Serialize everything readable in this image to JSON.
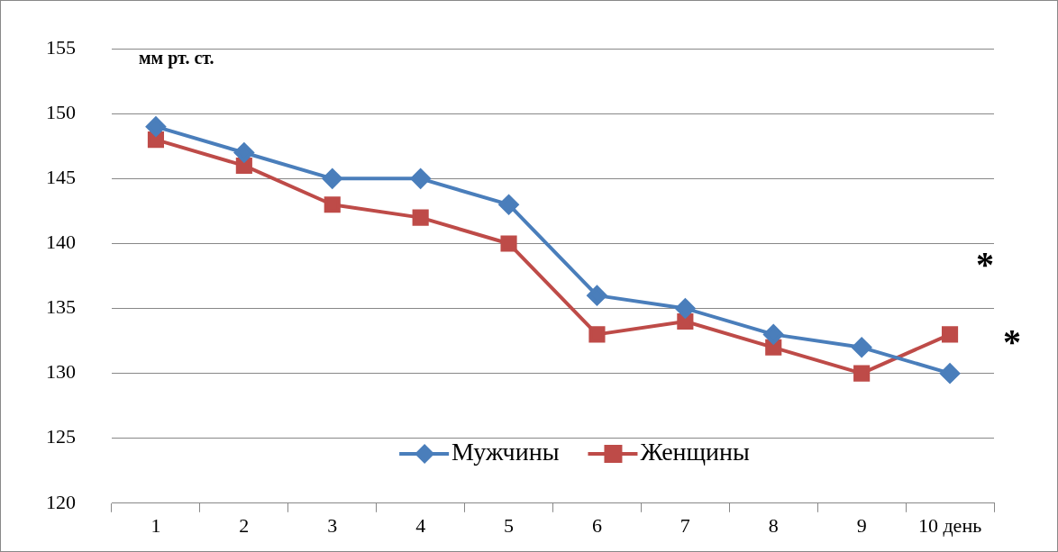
{
  "chart_data": {
    "type": "line",
    "ylabel": "мм рт. ст.",
    "categories": [
      "1",
      "2",
      "3",
      "4",
      "5",
      "6",
      "7",
      "8",
      "9",
      "10 день"
    ],
    "series": [
      {
        "name": "Мужчины",
        "color": "#4a7ebb",
        "marker": "diamond",
        "values": [
          149,
          147,
          145,
          145,
          143,
          136,
          135,
          133,
          132,
          130
        ]
      },
      {
        "name": "Женщины",
        "color": "#be4b48",
        "marker": "square",
        "values": [
          148,
          146,
          143,
          142,
          140,
          133,
          134,
          132,
          130,
          133
        ]
      }
    ],
    "ylim": [
      120,
      155
    ],
    "yticks": [
      120,
      125,
      130,
      135,
      140,
      145,
      150,
      155
    ],
    "grid": "y",
    "legend": "bottom",
    "line_style": "solid",
    "annotations": [
      "*",
      "*"
    ]
  }
}
